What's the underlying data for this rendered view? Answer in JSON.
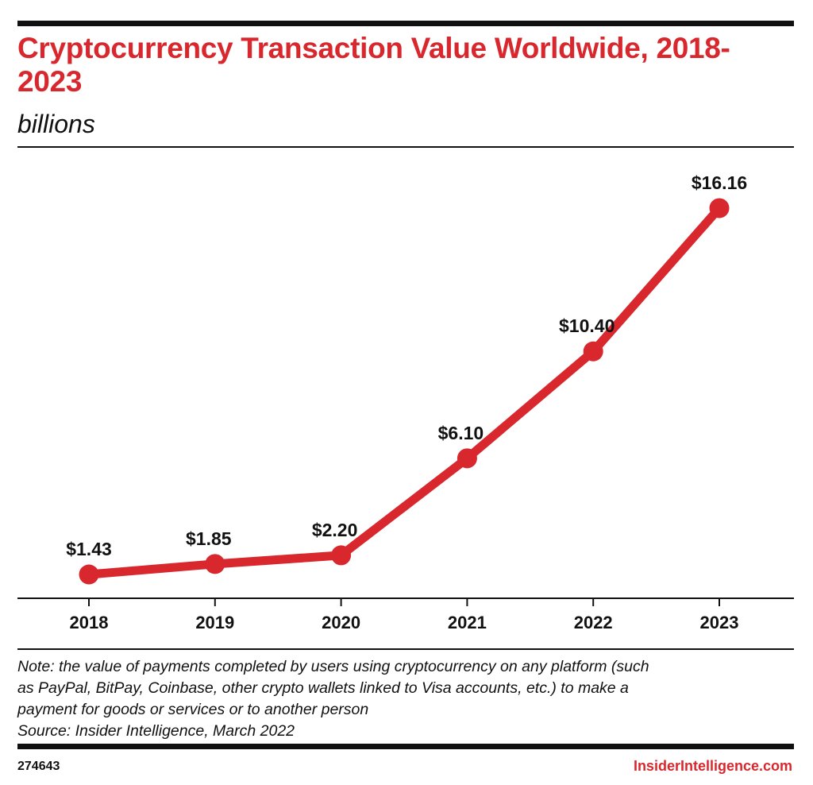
{
  "title": "Cryptocurrency Transaction Value Worldwide, 2018-2023",
  "subtitle": "billions",
  "note_lines": [
    "Note: the value of payments completed by users using cryptocurrency on any platform (such",
    "as PayPal, BitPay, Coinbase, other crypto wallets linked to Visa accounts, etc.) to make a",
    "payment for goods or services or to another person",
    "Source: Insider Intelligence, March 2022"
  ],
  "chart_id": "274643",
  "brand": "InsiderIntelligence.com",
  "colors": {
    "accent": "#d9272e",
    "text": "#111111"
  },
  "chart_data": {
    "type": "line",
    "title": "Cryptocurrency Transaction Value Worldwide, 2018-2023",
    "subtitle": "billions",
    "categories": [
      "2018",
      "2019",
      "2020",
      "2021",
      "2022",
      "2023"
    ],
    "values": [
      1.43,
      1.85,
      2.2,
      6.1,
      10.4,
      16.16
    ],
    "value_labels": [
      "$1.43",
      "$1.85",
      "$2.20",
      "$6.10",
      "$10.40",
      "$16.16"
    ],
    "grid": false,
    "legend": "none",
    "ylim": [
      0,
      18
    ]
  }
}
